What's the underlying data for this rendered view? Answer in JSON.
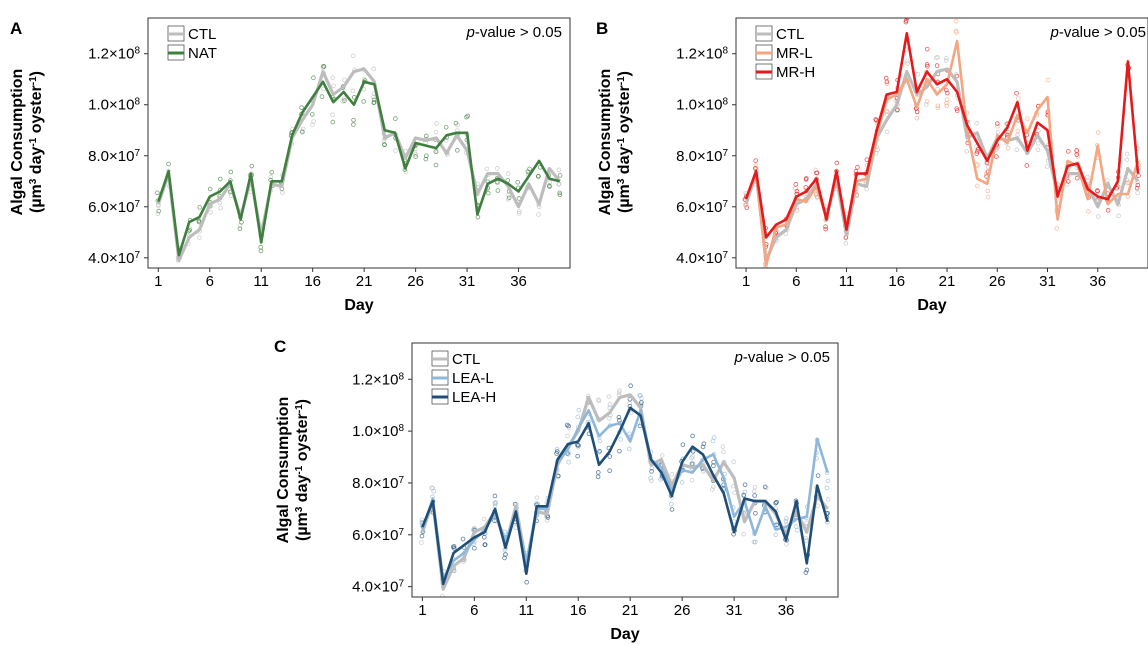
{
  "chart_data": [
    {
      "panel": "A",
      "type": "line",
      "xlabel": "Day",
      "ylabel_line1": "Algal Consumption",
      "ylabel_line2_parts": [
        "(µm",
        "3",
        " day",
        "-1",
        " oyster",
        "-1",
        ")"
      ],
      "annotation_italic": "p",
      "annotation_rest": "-value > 0.05",
      "xticks": [
        1,
        6,
        11,
        16,
        21,
        26,
        31,
        36
      ],
      "yticks": [
        {
          "v": 40000000.0,
          "label": "4.0×10",
          "exp": "7"
        },
        {
          "v": 60000000.0,
          "label": "6.0×10",
          "exp": "7"
        },
        {
          "v": 80000000.0,
          "label": "8.0×10",
          "exp": "7"
        },
        {
          "v": 100000000.0,
          "label": "1.0×10",
          "exp": "8"
        },
        {
          "v": 120000000.0,
          "label": "1.2×10",
          "exp": "8"
        }
      ],
      "xlim": [
        0,
        41
      ],
      "ylim": [
        36000000.0,
        134000000.0
      ],
      "series": [
        {
          "name": "CTL",
          "color": "#bdbdbd",
          "values": [
            61000000.0,
            73000000.0,
            39000000.0,
            48000000.0,
            51000000.0,
            61000000.0,
            63000000.0,
            69000000.0,
            56000000.0,
            71000000.0,
            49000000.0,
            69000000.0,
            68000000.0,
            87000000.0,
            94000000.0,
            100000000.0,
            113000000.0,
            104000000.0,
            107000000.0,
            113000000.0,
            114000000.0,
            109000000.0,
            87000000.0,
            89000000.0,
            79000000.0,
            87000000.0,
            86000000.0,
            87000000.0,
            81000000.0,
            88000000.0,
            82000000.0,
            65000000.0,
            73000000.0,
            73000000.0,
            68000000.0,
            60000000.0,
            69000000.0,
            61000000.0,
            75000000.0,
            70000000.0
          ]
        },
        {
          "name": "NAT",
          "color": "#3f7f3f",
          "values": [
            62000000.0,
            74000000.0,
            41000000.0,
            54000000.0,
            56000000.0,
            64000000.0,
            66000000.0,
            70000000.0,
            55000000.0,
            73000000.0,
            46000000.0,
            70000000.0,
            70000000.0,
            88000000.0,
            97000000.0,
            103000000.0,
            109000000.0,
            101000000.0,
            105000000.0,
            100000000.0,
            109000000.0,
            108000000.0,
            90000000.0,
            89000000.0,
            75000000.0,
            85000000.0,
            84000000.0,
            83000000.0,
            88000000.0,
            89000000.0,
            89000000.0,
            57000000.0,
            69000000.0,
            71000000.0,
            69000000.0,
            66000000.0,
            72000000.0,
            78000000.0,
            71000000.0,
            70000000.0
          ]
        }
      ]
    },
    {
      "panel": "B",
      "type": "line",
      "xlabel": "Day",
      "ylabel_line1": "Algal Consumption",
      "ylabel_line2_parts": [
        "(µm",
        "3",
        " day",
        "-1",
        " oyster",
        "-1",
        ")"
      ],
      "annotation_italic": "p",
      "annotation_rest": "-value > 0.05",
      "xticks": [
        1,
        6,
        11,
        16,
        21,
        26,
        31,
        36
      ],
      "yticks": [
        {
          "v": 40000000.0,
          "label": "4.0×10",
          "exp": "7"
        },
        {
          "v": 60000000.0,
          "label": "6.0×10",
          "exp": "7"
        },
        {
          "v": 80000000.0,
          "label": "8.0×10",
          "exp": "7"
        },
        {
          "v": 100000000.0,
          "label": "1.0×10",
          "exp": "8"
        },
        {
          "v": 120000000.0,
          "label": "1.2×10",
          "exp": "8"
        }
      ],
      "xlim": [
        0,
        41
      ],
      "ylim": [
        36000000.0,
        134000000.0
      ],
      "series": [
        {
          "name": "CTL",
          "color": "#bdbdbd",
          "values": [
            61000000.0,
            73000000.0,
            39000000.0,
            48000000.0,
            51000000.0,
            61000000.0,
            63000000.0,
            69000000.0,
            56000000.0,
            71000000.0,
            49000000.0,
            69000000.0,
            68000000.0,
            87000000.0,
            94000000.0,
            100000000.0,
            113000000.0,
            104000000.0,
            107000000.0,
            113000000.0,
            114000000.0,
            109000000.0,
            87000000.0,
            89000000.0,
            79000000.0,
            87000000.0,
            86000000.0,
            87000000.0,
            81000000.0,
            88000000.0,
            82000000.0,
            65000000.0,
            73000000.0,
            73000000.0,
            68000000.0,
            60000000.0,
            69000000.0,
            61000000.0,
            75000000.0,
            70000000.0
          ]
        },
        {
          "name": "MR-L",
          "color": "#f4a582",
          "values": [
            63000000.0,
            73000000.0,
            37000000.0,
            52000000.0,
            53000000.0,
            63000000.0,
            62000000.0,
            68000000.0,
            56000000.0,
            72000000.0,
            53000000.0,
            70000000.0,
            71000000.0,
            88000000.0,
            102000000.0,
            104000000.0,
            110000000.0,
            99000000.0,
            110000000.0,
            104000000.0,
            108000000.0,
            125000000.0,
            90000000.0,
            71000000.0,
            69000000.0,
            88000000.0,
            85000000.0,
            96000000.0,
            89000000.0,
            98000000.0,
            103000000.0,
            55000000.0,
            78000000.0,
            76000000.0,
            63000000.0,
            84000000.0,
            61000000.0,
            65000000.0,
            65000000.0,
            78000000.0
          ]
        },
        {
          "name": "MR-H",
          "color": "#e41a1c",
          "values": [
            63000000.0,
            74000000.0,
            48000000.0,
            53000000.0,
            55000000.0,
            64000000.0,
            66000000.0,
            71000000.0,
            55000000.0,
            74000000.0,
            51000000.0,
            73000000.0,
            73000000.0,
            90000000.0,
            104000000.0,
            105000000.0,
            128000000.0,
            105000000.0,
            113000000.0,
            108000000.0,
            110000000.0,
            105000000.0,
            92000000.0,
            85000000.0,
            78000000.0,
            86000000.0,
            91000000.0,
            101000000.0,
            82000000.0,
            93000000.0,
            90000000.0,
            64000000.0,
            76000000.0,
            77000000.0,
            67000000.0,
            64000000.0,
            63000000.0,
            70000000.0,
            117000000.0,
            73000000.0
          ]
        }
      ]
    },
    {
      "panel": "C",
      "type": "line",
      "xlabel": "Day",
      "ylabel_line1": "Algal Consumption",
      "ylabel_line2_parts": [
        "(µm",
        "3",
        " day",
        "-1",
        " oyster",
        "-1",
        ")"
      ],
      "annotation_italic": "p",
      "annotation_rest": "-value > 0.05",
      "xticks": [
        1,
        6,
        11,
        16,
        21,
        26,
        31,
        36
      ],
      "yticks": [
        {
          "v": 40000000.0,
          "label": "4.0×10",
          "exp": "7"
        },
        {
          "v": 60000000.0,
          "label": "6.0×10",
          "exp": "7"
        },
        {
          "v": 80000000.0,
          "label": "8.0×10",
          "exp": "7"
        },
        {
          "v": 100000000.0,
          "label": "1.0×10",
          "exp": "8"
        },
        {
          "v": 120000000.0,
          "label": "1.2×10",
          "exp": "8"
        }
      ],
      "xlim": [
        0,
        41
      ],
      "ylim": [
        36000000.0,
        134000000.0
      ],
      "series": [
        {
          "name": "CTL",
          "color": "#bdbdbd",
          "values": [
            61000000.0,
            73000000.0,
            39000000.0,
            48000000.0,
            51000000.0,
            61000000.0,
            63000000.0,
            69000000.0,
            56000000.0,
            71000000.0,
            49000000.0,
            69000000.0,
            68000000.0,
            87000000.0,
            94000000.0,
            100000000.0,
            113000000.0,
            104000000.0,
            107000000.0,
            113000000.0,
            114000000.0,
            109000000.0,
            87000000.0,
            89000000.0,
            79000000.0,
            87000000.0,
            86000000.0,
            87000000.0,
            81000000.0,
            88000000.0,
            82000000.0,
            65000000.0,
            73000000.0,
            73000000.0,
            68000000.0,
            60000000.0,
            69000000.0,
            61000000.0,
            75000000.0,
            70000000.0
          ]
        },
        {
          "name": "LEA-L",
          "color": "#8fb7d9",
          "values": [
            62000000.0,
            74000000.0,
            43000000.0,
            50000000.0,
            53000000.0,
            58000000.0,
            62000000.0,
            68000000.0,
            58000000.0,
            68000000.0,
            49000000.0,
            70000000.0,
            70000000.0,
            88000000.0,
            93000000.0,
            101000000.0,
            108000000.0,
            98000000.0,
            102000000.0,
            103000000.0,
            96000000.0,
            108000000.0,
            89000000.0,
            86000000.0,
            77000000.0,
            85000000.0,
            84000000.0,
            89000000.0,
            91000000.0,
            82000000.0,
            67000000.0,
            73000000.0,
            60000000.0,
            71000000.0,
            62000000.0,
            63000000.0,
            66000000.0,
            67000000.0,
            97000000.0,
            84000000.0
          ]
        },
        {
          "name": "LEA-H",
          "color": "#1f4e79",
          "values": [
            63000000.0,
            73000000.0,
            41000000.0,
            53000000.0,
            56000000.0,
            59000000.0,
            61000000.0,
            70000000.0,
            55000000.0,
            69000000.0,
            45000000.0,
            71000000.0,
            71000000.0,
            89000000.0,
            95000000.0,
            96000000.0,
            103000000.0,
            87000000.0,
            92000000.0,
            100000000.0,
            109000000.0,
            106000000.0,
            89000000.0,
            84000000.0,
            75000000.0,
            88000000.0,
            94000000.0,
            91000000.0,
            83000000.0,
            76000000.0,
            61000000.0,
            74000000.0,
            73000000.0,
            73000000.0,
            69000000.0,
            58000000.0,
            73000000.0,
            49000000.0,
            79000000.0,
            65000000.0
          ]
        }
      ]
    }
  ],
  "panels_layout_note_omitted": ""
}
